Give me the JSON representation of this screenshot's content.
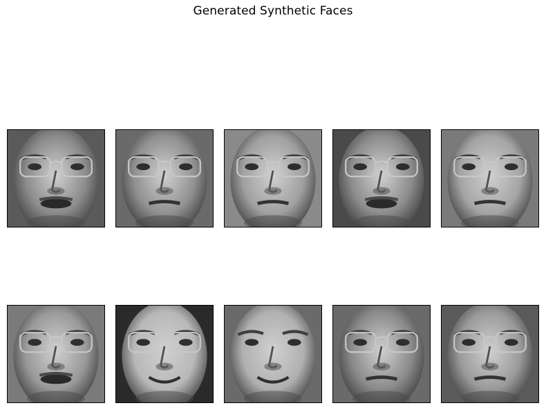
{
  "figure": {
    "title": "Generated Synthetic Faces"
  },
  "faces": [
    {
      "glasses": true,
      "tone": "#8a8a8a",
      "bg": "#5a5a5a",
      "mouth": "open"
    },
    {
      "glasses": true,
      "tone": "#909090",
      "bg": "#6a6a6a",
      "mouth": "closed"
    },
    {
      "glasses": true,
      "tone": "#a0a0a0",
      "bg": "#8a8a8a",
      "mouth": "closed"
    },
    {
      "glasses": true,
      "tone": "#8c8c8c",
      "bg": "#4a4a4a",
      "mouth": "open"
    },
    {
      "glasses": true,
      "tone": "#a4a4a4",
      "bg": "#7a7a7a",
      "mouth": "closed"
    },
    {
      "glasses": true,
      "tone": "#999999",
      "bg": "#7a7a7a",
      "mouth": "open"
    },
    {
      "glasses": true,
      "tone": "#b8b8b8",
      "bg": "#2a2a2a",
      "mouth": "smile"
    },
    {
      "glasses": false,
      "tone": "#b0b0b0",
      "bg": "#6a6a6a",
      "mouth": "smile"
    },
    {
      "glasses": true,
      "tone": "#8a8a8a",
      "bg": "#6a6a6a",
      "mouth": "closed"
    },
    {
      "glasses": true,
      "tone": "#9a9a9a",
      "bg": "#5a5a5a",
      "mouth": "closed"
    }
  ]
}
